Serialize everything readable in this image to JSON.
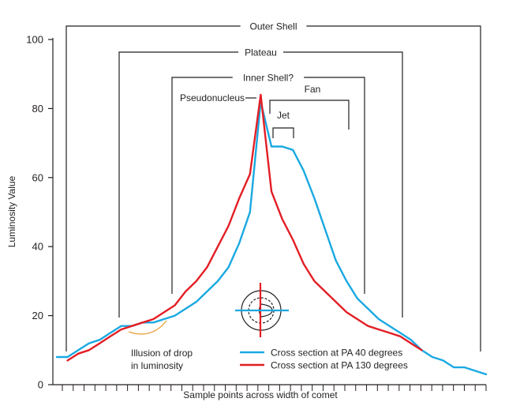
{
  "chart_data": {
    "type": "line",
    "title": "",
    "xlabel": "Sample points across width of comet",
    "ylabel": "Luminosity Value",
    "ylim": [
      0,
      100
    ],
    "yticks": [
      0,
      20,
      40,
      60,
      80,
      100
    ],
    "xlim": [
      0,
      39
    ],
    "x_ticks_count": 40,
    "grid": false,
    "legend_position": "bottom-right",
    "series": [
      {
        "name": "Cross section at PA 40 degrees",
        "color": "#1aa9e1",
        "points": [
          [
            0,
            8
          ],
          [
            1,
            8
          ],
          [
            2,
            10
          ],
          [
            3,
            12
          ],
          [
            4,
            13
          ],
          [
            5,
            15
          ],
          [
            6,
            17
          ],
          [
            7,
            17
          ],
          [
            8,
            18
          ],
          [
            9,
            18
          ],
          [
            10,
            19
          ],
          [
            11,
            20
          ],
          [
            12,
            22
          ],
          [
            13,
            24
          ],
          [
            14,
            27
          ],
          [
            15,
            30
          ],
          [
            16,
            34
          ],
          [
            17,
            41
          ],
          [
            18,
            50
          ],
          [
            19,
            82
          ],
          [
            20,
            69
          ],
          [
            21,
            69
          ],
          [
            22,
            68
          ],
          [
            23,
            62
          ],
          [
            24,
            54
          ],
          [
            25,
            45
          ],
          [
            26,
            36
          ],
          [
            27,
            30
          ],
          [
            28,
            25
          ],
          [
            29,
            22
          ],
          [
            30,
            19
          ],
          [
            31,
            17
          ],
          [
            32,
            15
          ],
          [
            33,
            13
          ],
          [
            34,
            10
          ],
          [
            35,
            8
          ],
          [
            36,
            7
          ],
          [
            37,
            5
          ],
          [
            38,
            5
          ],
          [
            39,
            4
          ],
          [
            40,
            3
          ]
        ]
      },
      {
        "name": "Cross section at PA 130 degrees",
        "color": "#e31e25",
        "points": [
          [
            1,
            7
          ],
          [
            2,
            9
          ],
          [
            3,
            10
          ],
          [
            4,
            12
          ],
          [
            5,
            14
          ],
          [
            6,
            16
          ],
          [
            7,
            17
          ],
          [
            8,
            18
          ],
          [
            9,
            19
          ],
          [
            10,
            21
          ],
          [
            11,
            23
          ],
          [
            12,
            27
          ],
          [
            13,
            30
          ],
          [
            14,
            34
          ],
          [
            15,
            40
          ],
          [
            16,
            46
          ],
          [
            17,
            54
          ],
          [
            18,
            61
          ],
          [
            19,
            84
          ],
          [
            20,
            56
          ],
          [
            21,
            48
          ],
          [
            22,
            42
          ],
          [
            23,
            35
          ],
          [
            24,
            30
          ],
          [
            25,
            27
          ],
          [
            26,
            24
          ],
          [
            27,
            21
          ],
          [
            28,
            19
          ],
          [
            29,
            17
          ],
          [
            30,
            16
          ],
          [
            31,
            15
          ],
          [
            32,
            14
          ],
          [
            33,
            12
          ],
          [
            34,
            10
          ]
        ]
      }
    ],
    "annotations": {
      "outer_shell": "Outer Shell",
      "plateau": "Plateau",
      "inner_shell": "Inner Shell?",
      "pseudonucleus": "Pseudonucleus",
      "fan": "Fan",
      "jet": "Jet",
      "illusion_line1": "Illusion of drop",
      "illusion_line2": "in luminosity"
    },
    "bracket_color": "#231f20",
    "illusion_arc_color": "#e8a13b"
  }
}
